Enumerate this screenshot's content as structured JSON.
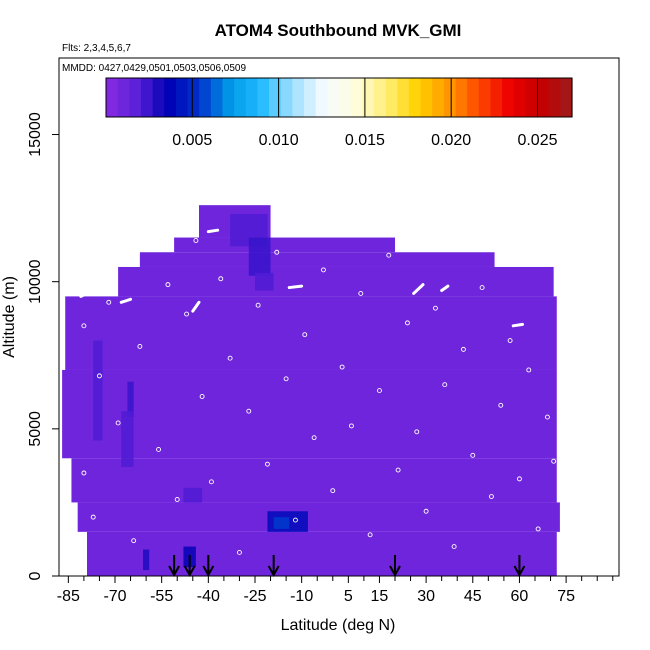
{
  "chart_data": {
    "type": "heatmap",
    "title": "ATOM4 Southbound MVK_GMI",
    "flights_label": "Flts: 2,3,4,5,6,7",
    "dates_label": "MMDD: 0427,0429,0501,0503,0506,0509",
    "xlabel": "Latitude (deg N)",
    "ylabel": "Altitude (m)",
    "xlim": [
      -88,
      92
    ],
    "ylim": [
      0,
      17600
    ],
    "x_ticks": [
      -85,
      -70,
      -55,
      -40,
      -25,
      -10,
      5,
      15,
      30,
      45,
      60,
      75
    ],
    "y_ticks": [
      0,
      5000,
      10000,
      15000
    ],
    "colorbar": {
      "range": [
        0,
        0.027
      ],
      "ticks": [
        0.005,
        0.01,
        0.015,
        0.02,
        0.025
      ],
      "tick_labels": [
        "0.005",
        "0.010",
        "0.015",
        "0.020",
        "0.025"
      ],
      "colors": [
        "#8a2be2",
        "#5a20d8",
        "#0000b4",
        "#0033cc",
        "#0099e8",
        "#22bbff",
        "#9fdfff",
        "#f5fbff",
        "#fffde0",
        "#fff07a",
        "#ffd200",
        "#ff9a00",
        "#ff4800",
        "#ee0000",
        "#c40000",
        "#9e1c1c"
      ]
    },
    "background_value": 0.001,
    "domain_rows": [
      {
        "alt": [
          11500,
          12600
        ],
        "lat_min": -43,
        "lat_max": -20
      },
      {
        "alt": [
          11000,
          11500
        ],
        "lat_min": -51,
        "lat_max": 20
      },
      {
        "alt": [
          10500,
          11000
        ],
        "lat_min": -62,
        "lat_max": 52
      },
      {
        "alt": [
          9500,
          10500
        ],
        "lat_min": -69,
        "lat_max": 71
      },
      {
        "alt": [
          7000,
          9500
        ],
        "lat_min": -86,
        "lat_max": 72
      },
      {
        "alt": [
          4000,
          7000
        ],
        "lat_min": -87,
        "lat_max": 72
      },
      {
        "alt": [
          2500,
          4000
        ],
        "lat_min": -84,
        "lat_max": 72
      },
      {
        "alt": [
          1500,
          2500
        ],
        "lat_min": -82,
        "lat_max": 73
      },
      {
        "alt": [
          0,
          1500
        ],
        "lat_min": -79,
        "lat_max": 72
      }
    ],
    "enhanced_cells": [
      {
        "lat": [
          -33,
          -21
        ],
        "alt": [
          11200,
          12300
        ],
        "value": 0.002
      },
      {
        "lat": [
          -27,
          -20
        ],
        "alt": [
          10200,
          11500
        ],
        "value": 0.0025
      },
      {
        "lat": [
          -25,
          -19
        ],
        "alt": [
          9700,
          10300
        ],
        "value": 0.002
      },
      {
        "lat": [
          -77,
          -74
        ],
        "alt": [
          4600,
          8000
        ],
        "value": 0.002
      },
      {
        "lat": [
          -66,
          -64
        ],
        "alt": [
          5400,
          6600
        ],
        "value": 0.0025
      },
      {
        "lat": [
          -68,
          -64
        ],
        "alt": [
          3700,
          5600
        ],
        "value": 0.002
      },
      {
        "lat": [
          -48,
          -42
        ],
        "alt": [
          2500,
          3000
        ],
        "value": 0.002
      },
      {
        "lat": [
          -21,
          -8
        ],
        "alt": [
          1500,
          2200
        ],
        "value": 0.004
      },
      {
        "lat": [
          -19,
          -14
        ],
        "alt": [
          1600,
          2000
        ],
        "value": 0.0055
      },
      {
        "lat": [
          -48,
          -44
        ],
        "alt": [
          300,
          1000
        ],
        "value": 0.0035
      },
      {
        "lat": [
          -61,
          -59
        ],
        "alt": [
          200,
          900
        ],
        "value": 0.003
      }
    ],
    "takeoff_markers_lat": [
      -51,
      -46,
      -40,
      -19,
      20,
      60
    ],
    "sample_points": [
      {
        "lat": -80,
        "alt": 3500
      },
      {
        "lat": -80,
        "alt": 8500
      },
      {
        "lat": -77,
        "alt": 2000
      },
      {
        "lat": -75,
        "alt": 6800
      },
      {
        "lat": -72,
        "alt": 9300
      },
      {
        "lat": -69,
        "alt": 5200
      },
      {
        "lat": -66,
        "alt": 10600
      },
      {
        "lat": -64,
        "alt": 1200
      },
      {
        "lat": -62,
        "alt": 7800
      },
      {
        "lat": -58,
        "alt": 11100
      },
      {
        "lat": -56,
        "alt": 4300
      },
      {
        "lat": -53,
        "alt": 9900
      },
      {
        "lat": -50,
        "alt": 2600
      },
      {
        "lat": -47,
        "alt": 8900
      },
      {
        "lat": -44,
        "alt": 11400
      },
      {
        "lat": -42,
        "alt": 6100
      },
      {
        "lat": -39,
        "alt": 3200
      },
      {
        "lat": -36,
        "alt": 10100
      },
      {
        "lat": -33,
        "alt": 7400
      },
      {
        "lat": -30,
        "alt": 800
      },
      {
        "lat": -27,
        "alt": 5600
      },
      {
        "lat": -24,
        "alt": 9200
      },
      {
        "lat": -21,
        "alt": 3800
      },
      {
        "lat": -18,
        "alt": 11000
      },
      {
        "lat": -15,
        "alt": 6700
      },
      {
        "lat": -12,
        "alt": 1900
      },
      {
        "lat": -9,
        "alt": 8200
      },
      {
        "lat": -6,
        "alt": 4700
      },
      {
        "lat": -3,
        "alt": 10400
      },
      {
        "lat": 0,
        "alt": 2900
      },
      {
        "lat": 3,
        "alt": 7100
      },
      {
        "lat": 6,
        "alt": 5100
      },
      {
        "lat": 9,
        "alt": 9600
      },
      {
        "lat": 12,
        "alt": 1400
      },
      {
        "lat": 15,
        "alt": 6300
      },
      {
        "lat": 18,
        "alt": 10900
      },
      {
        "lat": 21,
        "alt": 3600
      },
      {
        "lat": 24,
        "alt": 8600
      },
      {
        "lat": 27,
        "alt": 4900
      },
      {
        "lat": 30,
        "alt": 2200
      },
      {
        "lat": 33,
        "alt": 9100
      },
      {
        "lat": 36,
        "alt": 6500
      },
      {
        "lat": 39,
        "alt": 1000
      },
      {
        "lat": 42,
        "alt": 7700
      },
      {
        "lat": 45,
        "alt": 4100
      },
      {
        "lat": 48,
        "alt": 9800
      },
      {
        "lat": 51,
        "alt": 2700
      },
      {
        "lat": 54,
        "alt": 5800
      },
      {
        "lat": 57,
        "alt": 8000
      },
      {
        "lat": 60,
        "alt": 3300
      },
      {
        "lat": 63,
        "alt": 7000
      },
      {
        "lat": 66,
        "alt": 1600
      },
      {
        "lat": 69,
        "alt": 5400
      },
      {
        "lat": 71,
        "alt": 3900
      }
    ],
    "flight_track_segments": [
      {
        "lat": [
          -56,
          -53
        ],
        "alt": [
          12000,
          12100
        ]
      },
      {
        "lat": [
          -40,
          -37
        ],
        "alt": [
          11700,
          11750
        ]
      },
      {
        "lat": [
          -4,
          0
        ],
        "alt": [
          11800,
          11850
        ]
      },
      {
        "lat": [
          14,
          16
        ],
        "alt": [
          11700,
          11720
        ]
      },
      {
        "lat": [
          -81,
          -77
        ],
        "alt": [
          9500,
          9700
        ]
      },
      {
        "lat": [
          -68,
          -65
        ],
        "alt": [
          9300,
          9400
        ]
      },
      {
        "lat": [
          -45,
          -43
        ],
        "alt": [
          9000,
          9300
        ]
      },
      {
        "lat": [
          26,
          29
        ],
        "alt": [
          9600,
          9900
        ]
      },
      {
        "lat": [
          35,
          37
        ],
        "alt": [
          9700,
          9850
        ]
      },
      {
        "lat": [
          58,
          61
        ],
        "alt": [
          8500,
          8550
        ]
      },
      {
        "lat": [
          -14,
          -10
        ],
        "alt": [
          9800,
          9850
        ]
      }
    ]
  }
}
